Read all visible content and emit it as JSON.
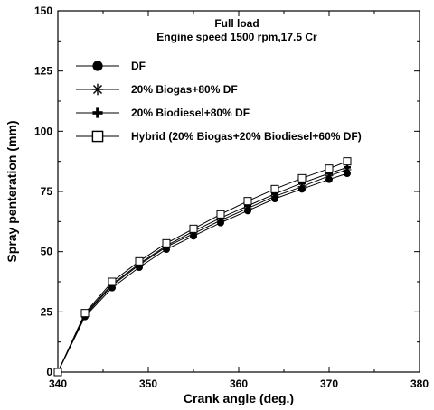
{
  "chart_data": {
    "type": "line",
    "title": "",
    "annotations": [
      "Full load",
      "Engine speed 1500 rpm,17.5 Cr"
    ],
    "xlabel": "Crank angle (deg.)",
    "ylabel": "Spray penteration (mm)",
    "xlim": [
      340,
      380
    ],
    "ylim": [
      0,
      150
    ],
    "xticks": [
      340,
      350,
      360,
      370,
      380
    ],
    "yticks": [
      0,
      25,
      50,
      75,
      100,
      125,
      150
    ],
    "grid": false,
    "legend_position": "top-left",
    "x": [
      340,
      343,
      346,
      349,
      352,
      355,
      358,
      361,
      364,
      367,
      370,
      372
    ],
    "series": [
      {
        "name": "DF",
        "marker": "filled-circle",
        "values": [
          0,
          23,
          35,
          43.5,
          51,
          56.5,
          62,
          67,
          72,
          76,
          80,
          82.5
        ]
      },
      {
        "name": "20% Biogas+80% DF",
        "marker": "asterisk",
        "values": [
          0,
          23.5,
          36,
          44.5,
          52,
          57.5,
          63,
          68,
          73,
          77,
          81.5,
          84
        ]
      },
      {
        "name": "20% Biodiesel+80% DF",
        "marker": "plus",
        "values": [
          0,
          24,
          36.5,
          45,
          52.5,
          58.5,
          64,
          69,
          74,
          78.5,
          82.5,
          85
        ]
      },
      {
        "name": "Hybrid (20% Biogas+20% Biodiesel+60% DF)",
        "marker": "open-square",
        "values": [
          0,
          24.5,
          37.5,
          46,
          53.5,
          59.5,
          65.5,
          71,
          76,
          80.5,
          84.5,
          87.5
        ]
      }
    ]
  }
}
